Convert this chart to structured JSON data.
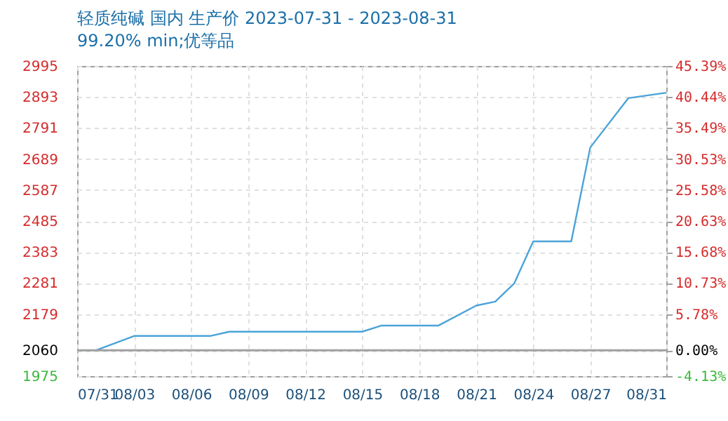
{
  "chart_data": {
    "type": "line",
    "title": "轻质纯碱 国内 生产价 2023-07-31 - 2023-08-31",
    "subtitle": "99.20% min;优等品",
    "x": [
      "2023-07-31",
      "2023-08-01",
      "2023-08-03",
      "2023-08-07",
      "2023-08-08",
      "2023-08-15",
      "2023-08-16",
      "2023-08-19",
      "2023-08-21",
      "2023-08-22",
      "2023-08-23",
      "2023-08-24",
      "2023-08-26",
      "2023-08-27",
      "2023-08-29",
      "2023-08-31"
    ],
    "series": [
      {
        "color": "#4ba3d8",
        "values": [
          2060,
          2060,
          2107,
          2107,
          2121,
          2121,
          2141,
          2141,
          2207,
          2220,
          2280,
          2418,
          2418,
          2727,
          2889,
          2907
        ]
      }
    ],
    "xlim": [
      "2023-07-31",
      "2023-08-31"
    ],
    "xticks": [
      {
        "value": "2023-07-31",
        "label": "07/31"
      },
      {
        "value": "2023-08-03",
        "label": "08/03"
      },
      {
        "value": "2023-08-06",
        "label": "08/06"
      },
      {
        "value": "2023-08-09",
        "label": "08/09"
      },
      {
        "value": "2023-08-12",
        "label": "08/12"
      },
      {
        "value": "2023-08-15",
        "label": "08/15"
      },
      {
        "value": "2023-08-18",
        "label": "08/18"
      },
      {
        "value": "2023-08-21",
        "label": "08/21"
      },
      {
        "value": "2023-08-24",
        "label": "08/24"
      },
      {
        "value": "2023-08-27",
        "label": "08/27"
      },
      {
        "value": "2023-08-31",
        "label": "08/31"
      }
    ],
    "ylim": [
      1975,
      2995
    ],
    "yticks": [
      1975,
      2060,
      2179,
      2281,
      2383,
      2485,
      2587,
      2689,
      2791,
      2893,
      2995
    ],
    "y2lim": [
      -4.13,
      45.39
    ],
    "y2ticks": [
      {
        "value": -4.13,
        "label": "-4.13%"
      },
      {
        "value": 0,
        "label": "0.00%"
      },
      {
        "value": 5.78,
        "label": "5.78%"
      },
      {
        "value": 10.73,
        "label": "10.73%"
      },
      {
        "value": 15.68,
        "label": "15.68%"
      },
      {
        "value": 20.63,
        "label": "20.63%"
      },
      {
        "value": 25.58,
        "label": "25.58%"
      },
      {
        "value": 30.53,
        "label": "30.53%"
      },
      {
        "value": 35.49,
        "label": "35.49%"
      },
      {
        "value": 40.44,
        "label": "40.44%"
      },
      {
        "value": 45.39,
        "label": "45.39%"
      }
    ],
    "ref_lines": [
      {
        "axis": "y2",
        "value": 0,
        "color": "#a0a0a0"
      }
    ],
    "grid": true,
    "marker": "none",
    "line_style": "solid"
  }
}
